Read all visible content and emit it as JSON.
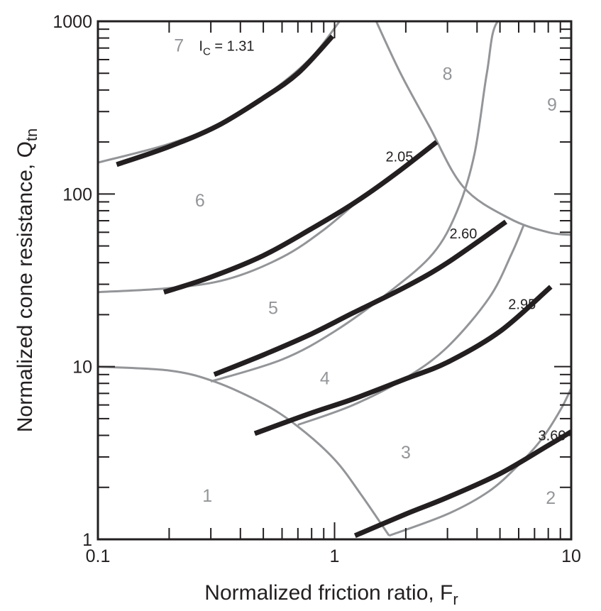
{
  "chart_data": {
    "type": "line",
    "xlabel": "Normalized friction ratio, F",
    "xlabel_sub": "r",
    "ylabel": "Normalized cone resistance, Q",
    "ylabel_sub": "tn",
    "xscale": "log",
    "yscale": "log",
    "xlim": [
      0.1,
      10
    ],
    "ylim": [
      1,
      1000
    ],
    "x_tick_labels": [
      {
        "value": 0.1,
        "label": "0.1"
      },
      {
        "value": 1,
        "label": "1"
      },
      {
        "value": 10,
        "label": "10"
      }
    ],
    "y_tick_labels": [
      {
        "value": 1,
        "label": "1"
      },
      {
        "value": 10,
        "label": "10"
      },
      {
        "value": 100,
        "label": "100"
      },
      {
        "value": 1000,
        "label": "1000"
      }
    ],
    "zones": [
      {
        "label": "1",
        "x": 0.29,
        "y": 1.8
      },
      {
        "label": "2",
        "x": 8.2,
        "y": 1.75
      },
      {
        "label": "3",
        "x": 2.0,
        "y": 3.2
      },
      {
        "label": "4",
        "x": 0.91,
        "y": 8.6
      },
      {
        "label": "5",
        "x": 0.55,
        "y": 22
      },
      {
        "label": "6",
        "x": 0.27,
        "y": 92
      },
      {
        "label": "7",
        "x": 0.22,
        "y": 730
      },
      {
        "label": "8",
        "x": 3.0,
        "y": 500
      },
      {
        "label": "9",
        "x": 8.3,
        "y": 330
      }
    ],
    "ic_series": [
      {
        "label_main": "I",
        "label_sub": "C",
        "label_rest": " = 1.31",
        "label_at": {
          "x": 0.35,
          "y": 720
        },
        "x": [
          0.12,
          0.2,
          0.32,
          0.5,
          0.7,
          0.98
        ],
        "y": [
          148,
          188,
          248,
          360,
          500,
          820
        ]
      },
      {
        "label_main": "2.05",
        "label_at": {
          "x": 1.88,
          "y": 165
        },
        "x": [
          0.19,
          0.3,
          0.5,
          0.8,
          1.2,
          1.8,
          2.7
        ],
        "y": [
          27,
          33,
          44,
          63,
          88,
          130,
          200
        ]
      },
      {
        "label_main": "2.60",
        "label_at": {
          "x": 3.5,
          "y": 59
        },
        "x": [
          0.31,
          0.5,
          0.8,
          1.2,
          2.0,
          3.0,
          5.3
        ],
        "y": [
          9,
          11.7,
          15.5,
          20.5,
          29,
          40,
          69
        ]
      },
      {
        "label_main": "2.95",
        "label_at": {
          "x": 6.2,
          "y": 23
        },
        "x": [
          0.46,
          0.8,
          1.2,
          2.0,
          3.0,
          5.0,
          8.2
        ],
        "y": [
          4.1,
          5.4,
          6.5,
          8.5,
          10.6,
          16,
          29
        ]
      },
      {
        "label_main": "3.60",
        "label_at": {
          "x": 8.3,
          "y": 4.0
        },
        "x": [
          1.22,
          2.0,
          3.0,
          5.0,
          8.0,
          10.0
        ],
        "y": [
          1.05,
          1.4,
          1.75,
          2.4,
          3.5,
          4.2
        ]
      }
    ],
    "zone_boundaries": [
      {
        "x": [
          0.1,
          0.2,
          0.31,
          0.5,
          0.7,
          1.0,
          1.3,
          1.7
        ],
        "y": [
          10,
          9.5,
          8.2,
          6.1,
          4.5,
          2.9,
          1.8,
          1.05
        ]
      },
      {
        "x": [
          0.1,
          0.2,
          0.35,
          0.6,
          0.9,
          1.3
        ],
        "y": [
          27,
          28.5,
          32,
          43,
          62,
          95
        ]
      },
      {
        "x": [
          0.1,
          0.2,
          0.35,
          0.55,
          0.8,
          1.05
        ],
        "y": [
          152,
          195,
          265,
          400,
          620,
          1000
        ]
      },
      {
        "x": [
          1.5,
          1.9,
          2.5,
          3.5,
          5.5,
          8.0,
          10.0
        ],
        "y": [
          1000,
          500,
          250,
          110,
          72,
          60,
          58
        ]
      },
      {
        "x": [
          0.3,
          0.6,
          1.0,
          1.7,
          2.6,
          3.3,
          3.9,
          4.4,
          4.9,
          6.7
        ],
        "y": [
          8.2,
          11,
          16,
          27,
          45,
          80,
          170,
          500,
          1000,
          1000
        ]
      },
      {
        "x": [
          0.7,
          1.2,
          2.0,
          3.0,
          4.5,
          5.6,
          6.3
        ],
        "y": [
          4.6,
          6.0,
          8.6,
          13,
          25,
          45,
          66
        ]
      },
      {
        "x": [
          1.7,
          3.0,
          4.5,
          6.0,
          7.5,
          9.0,
          10.0
        ],
        "y": [
          1.05,
          1.4,
          1.9,
          2.7,
          3.8,
          5.6,
          7.5
        ]
      }
    ]
  }
}
